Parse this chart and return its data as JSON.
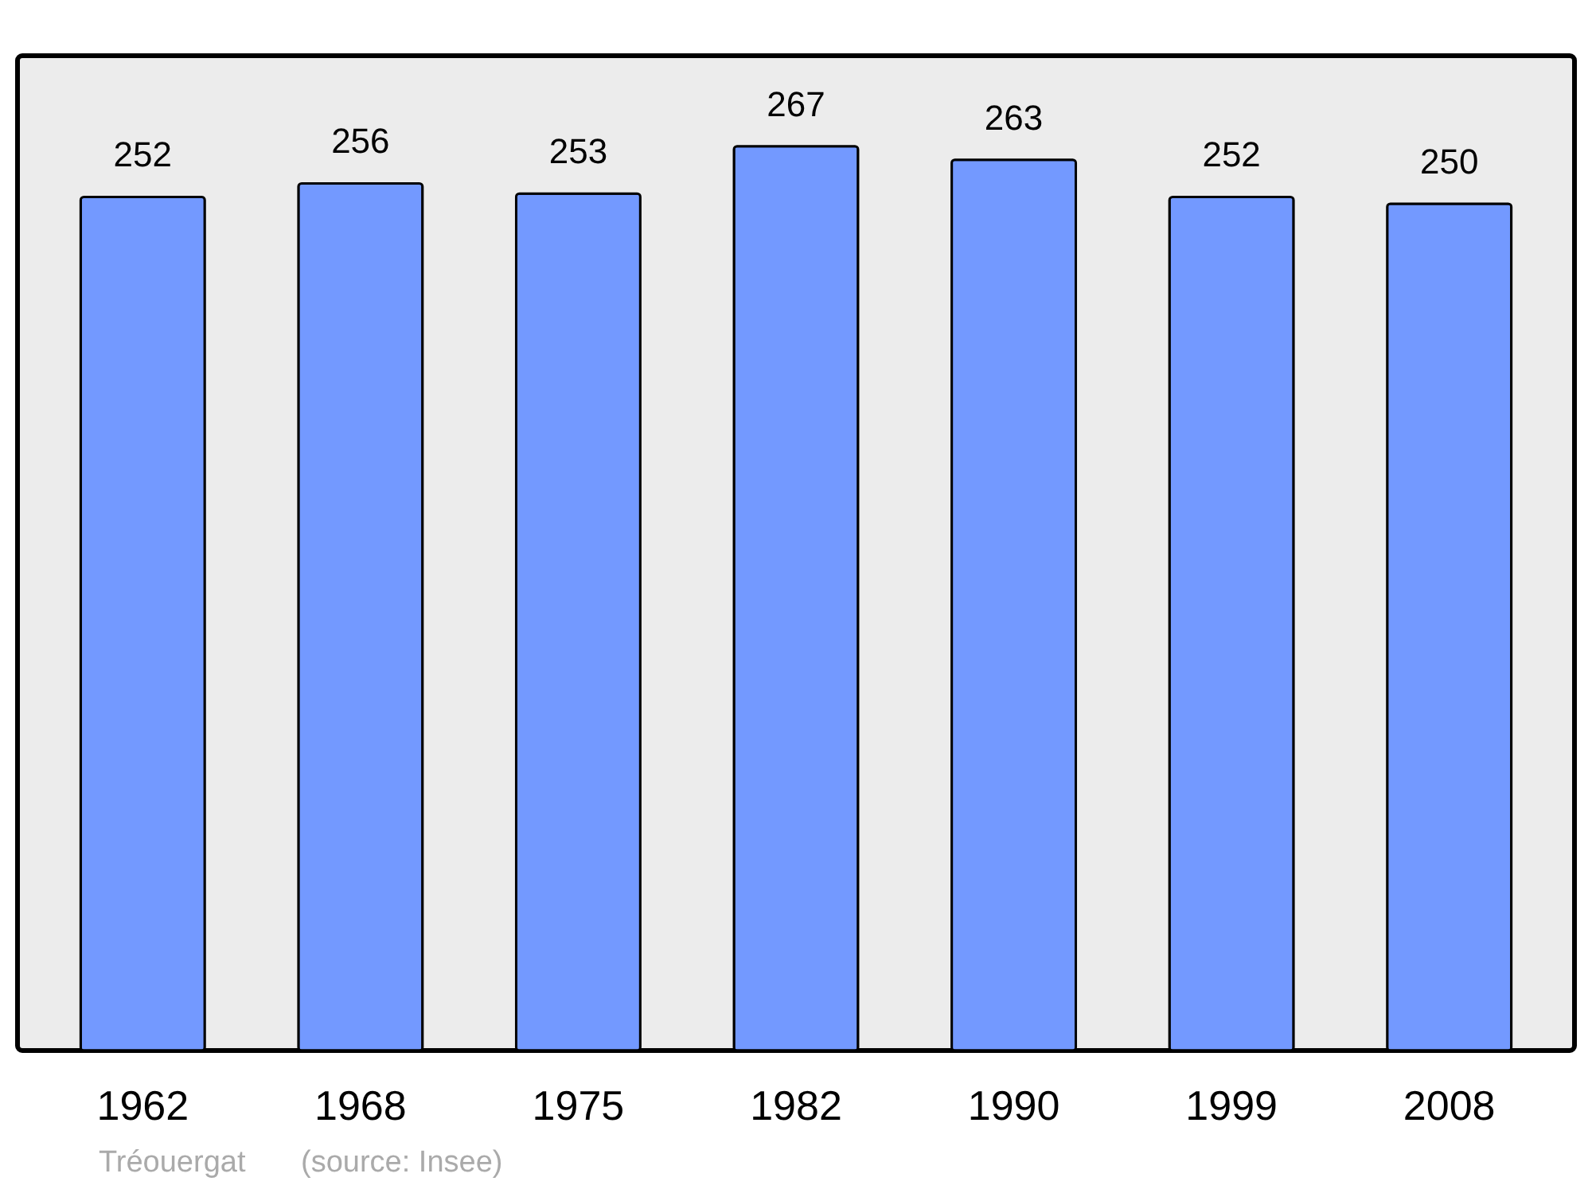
{
  "chart_data": {
    "type": "bar",
    "categories": [
      "1962",
      "1968",
      "1975",
      "1982",
      "1990",
      "1999",
      "2008"
    ],
    "values": [
      252,
      256,
      253,
      267,
      263,
      252,
      250
    ],
    "color": "#7399ff",
    "data_labels": true,
    "tick_labels": "x",
    "annotations": [
      "Tréouergat",
      "(source: Insee)"
    ]
  }
}
